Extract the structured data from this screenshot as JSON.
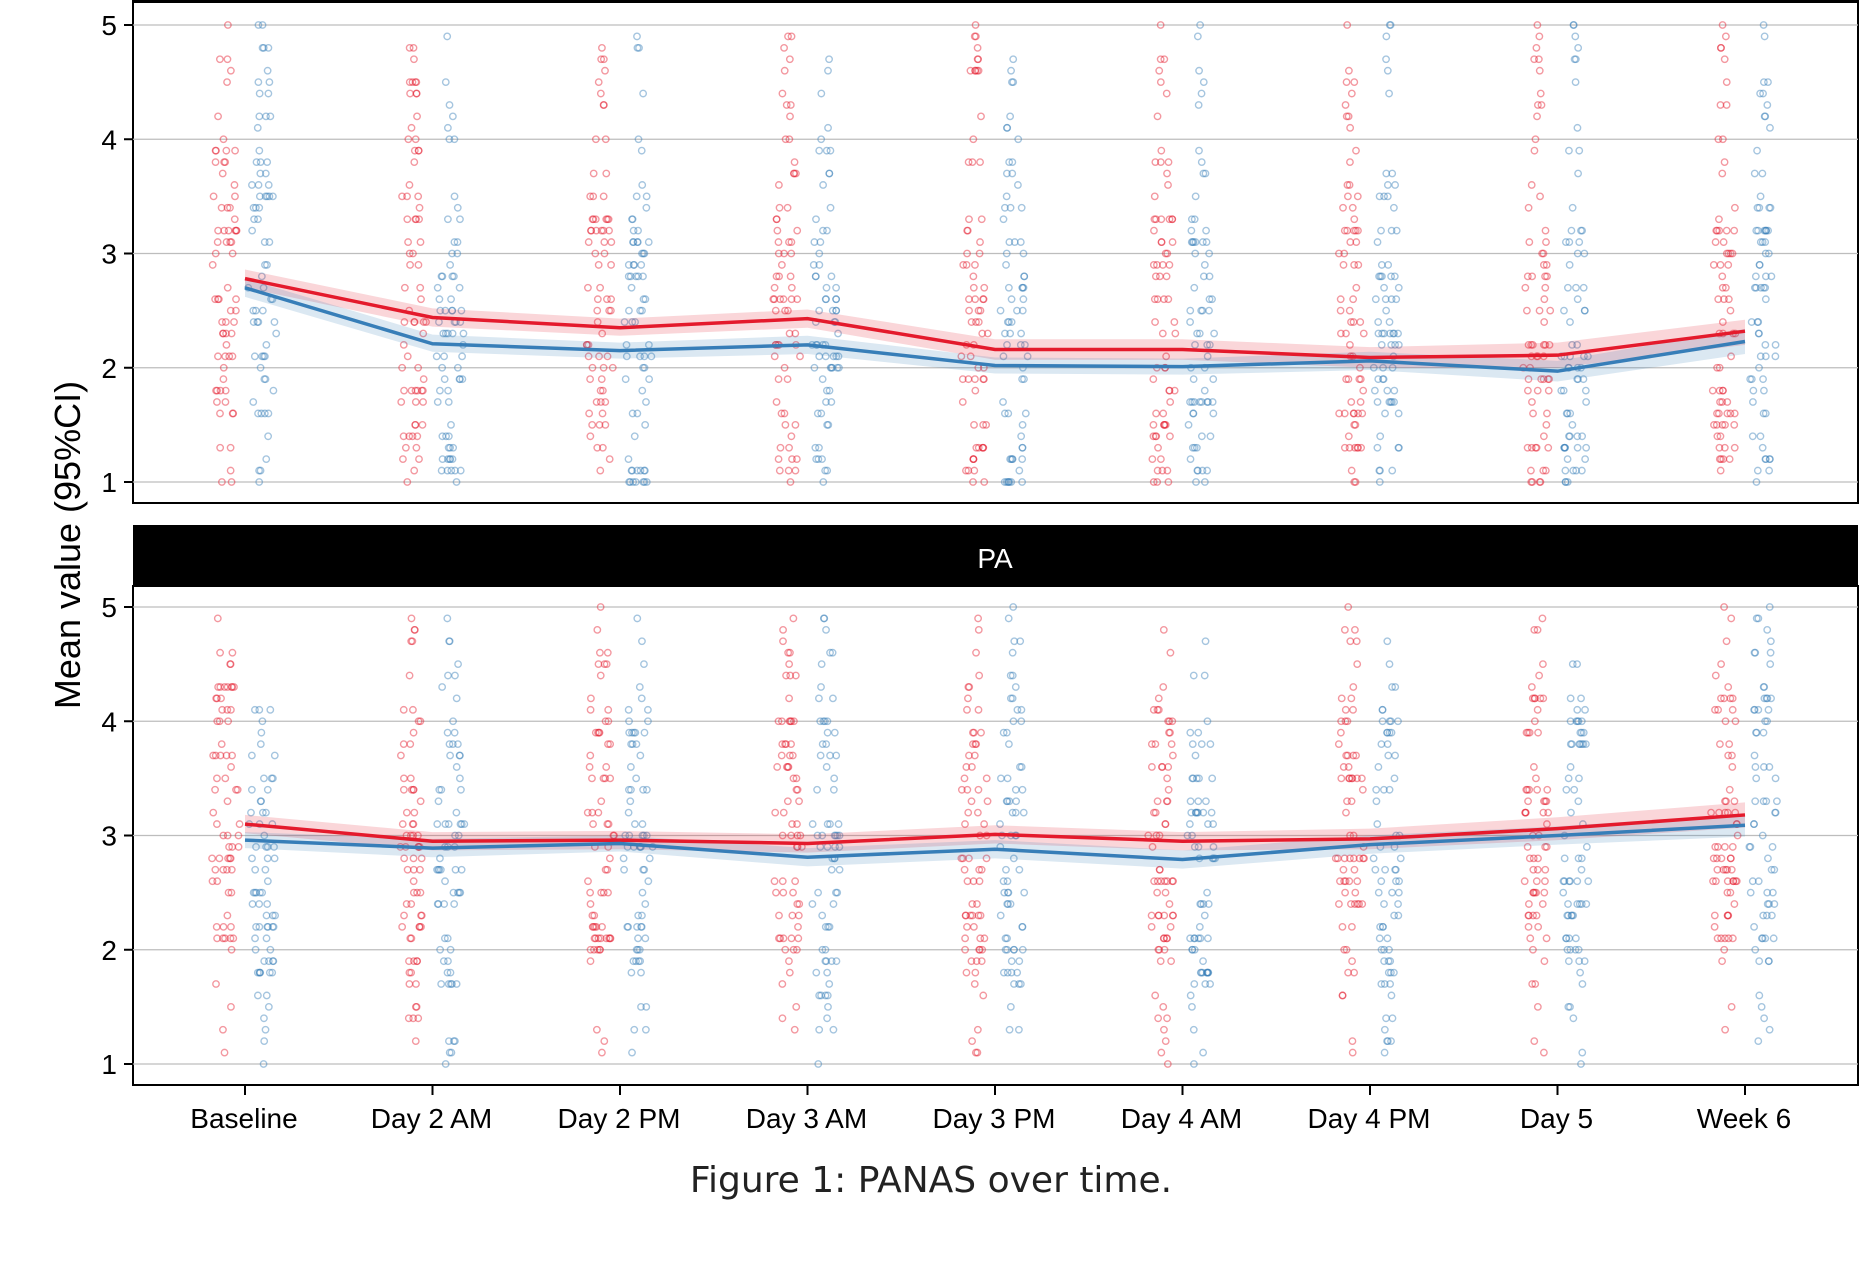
{
  "caption": "Figure 1: PANAS over time.",
  "colors": {
    "series_a": "#e41a2c",
    "series_b": "#377eb8",
    "strip_bg": "#000000",
    "strip_text": "#ffffff",
    "grid": "#bdbdbd"
  },
  "chart_data": [
    {
      "type": "line",
      "panel": "top",
      "strip_label": "",
      "title": "",
      "xlabel": "",
      "ylabel": "Mean value (95%CI)",
      "ylim": [
        0.82,
        5.2
      ],
      "yticks": [
        1,
        2,
        3,
        4,
        5
      ],
      "grid": true,
      "categories": [
        "Baseline",
        "Day 2 AM",
        "Day 2 PM",
        "Day 3 AM",
        "Day 3 PM",
        "Day 4 AM",
        "Day 4 PM",
        "Day 5",
        "Week 6"
      ],
      "series": [
        {
          "color": "#e41a2c",
          "values": [
            2.78,
            2.44,
            2.35,
            2.43,
            2.16,
            2.16,
            2.09,
            2.11,
            2.32
          ],
          "ci_low": [
            2.7,
            2.36,
            2.28,
            2.35,
            2.07,
            2.07,
            2.0,
            2.0,
            2.2
          ],
          "ci_high": [
            2.86,
            2.52,
            2.43,
            2.51,
            2.25,
            2.25,
            2.18,
            2.22,
            2.42
          ]
        },
        {
          "color": "#377eb8",
          "values": [
            2.7,
            2.21,
            2.15,
            2.2,
            2.02,
            2.01,
            2.06,
            1.97,
            2.23
          ],
          "ci_low": [
            2.62,
            2.14,
            2.08,
            2.12,
            1.95,
            1.94,
            1.98,
            1.88,
            2.12
          ],
          "ci_high": [
            2.78,
            2.29,
            2.22,
            2.28,
            2.09,
            2.08,
            2.14,
            2.06,
            2.34
          ]
        }
      ]
    },
    {
      "type": "line",
      "panel": "bottom",
      "strip_label": "PA",
      "title": "",
      "xlabel": "",
      "ylabel": "Mean value (95%CI)",
      "ylim": [
        0.82,
        5.2
      ],
      "yticks": [
        1,
        2,
        3,
        4,
        5
      ],
      "grid": true,
      "categories": [
        "Baseline",
        "Day 2 AM",
        "Day 2 PM",
        "Day 3 AM",
        "Day 3 PM",
        "Day 4 AM",
        "Day 4 PM",
        "Day 5",
        "Week 6"
      ],
      "series": [
        {
          "color": "#e41a2c",
          "values": [
            3.1,
            2.95,
            2.96,
            2.93,
            3.01,
            2.95,
            2.97,
            3.06,
            3.18
          ],
          "ci_low": [
            3.02,
            2.87,
            2.88,
            2.85,
            2.93,
            2.87,
            2.88,
            2.96,
            3.07
          ],
          "ci_high": [
            3.18,
            3.03,
            3.04,
            3.01,
            3.09,
            3.03,
            3.06,
            3.16,
            3.29
          ]
        },
        {
          "color": "#377eb8",
          "values": [
            2.96,
            2.89,
            2.93,
            2.81,
            2.88,
            2.79,
            2.92,
            3.0,
            3.09
          ],
          "ci_low": [
            2.89,
            2.81,
            2.86,
            2.73,
            2.8,
            2.71,
            2.84,
            2.92,
            2.99
          ],
          "ci_high": [
            3.03,
            2.97,
            3.0,
            2.89,
            2.96,
            2.87,
            3.0,
            3.08,
            3.19
          ]
        }
      ]
    }
  ]
}
